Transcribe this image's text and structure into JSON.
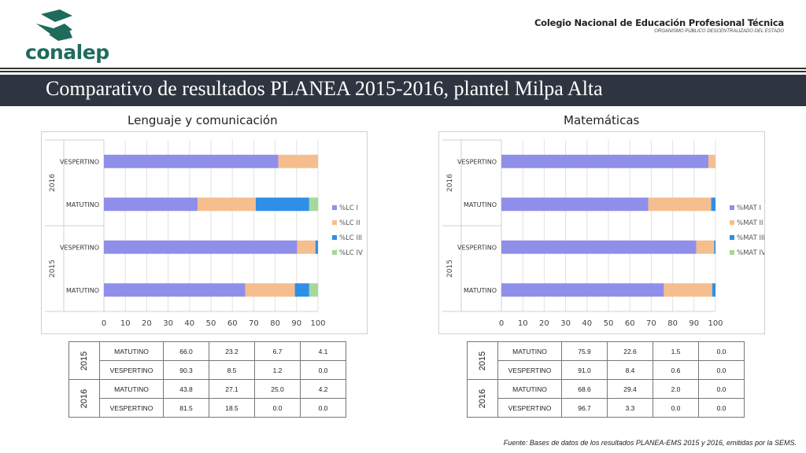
{
  "header": {
    "logo_text": "conalep",
    "org_name": "Colegio Nacional de Educación Profesional Técnica",
    "org_subtitle": "ORGANISMO PÚBLICO DESCENTRALIZADO DEL ESTADO",
    "slide_title": "Comparativo de resultados PLANEA 2015-2016, plantel Milpa Alta"
  },
  "colors": {
    "level1": "#8f8fea",
    "level2": "#f6be8e",
    "level3": "#2f8fe6",
    "level4": "#a6d89a",
    "banner": "#2e3440",
    "logo": "#1f6b5c"
  },
  "chart_data": [
    {
      "type": "bar",
      "title": "Lenguaje y comunicación",
      "orientation": "horizontal",
      "stacked": true,
      "groups": [
        {
          "year": "2016",
          "categories": [
            "VESPERTINO",
            "MATUTINO"
          ]
        },
        {
          "year": "2015",
          "categories": [
            "VESPERTINO",
            "MATUTINO"
          ]
        }
      ],
      "categories": [
        "2016 VESPERTINO",
        "2016 MATUTINO",
        "2015 VESPERTINO",
        "2015 MATUTINO"
      ],
      "series": [
        {
          "name": "%LC I",
          "values": [
            81.5,
            43.8,
            90.3,
            66.0
          ]
        },
        {
          "name": "%LC II",
          "values": [
            18.5,
            27.1,
            8.5,
            23.2
          ]
        },
        {
          "name": "%LC III",
          "values": [
            0.0,
            25.0,
            1.2,
            6.7
          ]
        },
        {
          "name": "%LC IV",
          "values": [
            0.0,
            4.2,
            0.0,
            4.1
          ]
        }
      ],
      "xlim": [
        0,
        100
      ],
      "xticks": [
        "0",
        "10",
        "20",
        "30",
        "40",
        "50",
        "60",
        "70",
        "80",
        "90",
        "100"
      ],
      "grid": true,
      "legend": "right"
    },
    {
      "type": "bar",
      "title": "Matemáticas",
      "orientation": "horizontal",
      "stacked": true,
      "groups": [
        {
          "year": "2016",
          "categories": [
            "VESPERTINO",
            "MATUTINO"
          ]
        },
        {
          "year": "2015",
          "categories": [
            "VESPERTINO",
            "MATUTINO"
          ]
        }
      ],
      "categories": [
        "2016 VESPERTINO",
        "2016 MATUTINO",
        "2015 VESPERTINO",
        "2015 MATUTINO"
      ],
      "series": [
        {
          "name": "%MAT I",
          "values": [
            96.7,
            68.6,
            91.0,
            75.9
          ]
        },
        {
          "name": "%MAT II",
          "values": [
            3.3,
            29.4,
            8.4,
            22.6
          ]
        },
        {
          "name": "%MAT III",
          "values": [
            0.0,
            2.0,
            0.6,
            1.5
          ]
        },
        {
          "name": "%MAT IV",
          "values": [
            0.0,
            0.0,
            0.0,
            0.0
          ]
        }
      ],
      "xlim": [
        0,
        100
      ],
      "xticks": [
        "0",
        "10",
        "20",
        "30",
        "40",
        "50",
        "60",
        "70",
        "80",
        "90",
        "100"
      ],
      "grid": true,
      "legend": "right"
    }
  ],
  "tables": [
    {
      "rows": [
        {
          "year": "2015",
          "shift": "MATUTINO",
          "values": [
            "66.0",
            "23.2",
            "6.7",
            "4.1"
          ]
        },
        {
          "year": "2015",
          "shift": "VESPERTINO",
          "values": [
            "90.3",
            "8.5",
            "1.2",
            "0.0"
          ]
        },
        {
          "year": "2016",
          "shift": "MATUTINO",
          "values": [
            "43.8",
            "27.1",
            "25.0",
            "4.2"
          ]
        },
        {
          "year": "2016",
          "shift": "VESPERTINO",
          "values": [
            "81.5",
            "18.5",
            "0.0",
            "0.0"
          ]
        }
      ]
    },
    {
      "rows": [
        {
          "year": "2015",
          "shift": "MATUTINO",
          "values": [
            "75.9",
            "22.6",
            "1.5",
            "0.0"
          ]
        },
        {
          "year": "2015",
          "shift": "VESPERTINO",
          "values": [
            "91.0",
            "8.4",
            "0.6",
            "0.0"
          ]
        },
        {
          "year": "2016",
          "shift": "MATUTINO",
          "values": [
            "68.6",
            "29.4",
            "2.0",
            "0.0"
          ]
        },
        {
          "year": "2016",
          "shift": "VESPERTINO",
          "values": [
            "96.7",
            "3.3",
            "0.0",
            "0.0"
          ]
        }
      ]
    }
  ],
  "footer": {
    "source": "Fuente: Bases de datos de los resultados PLANEA-EMS 2015 y 2016, emitidas por la SEMS."
  }
}
